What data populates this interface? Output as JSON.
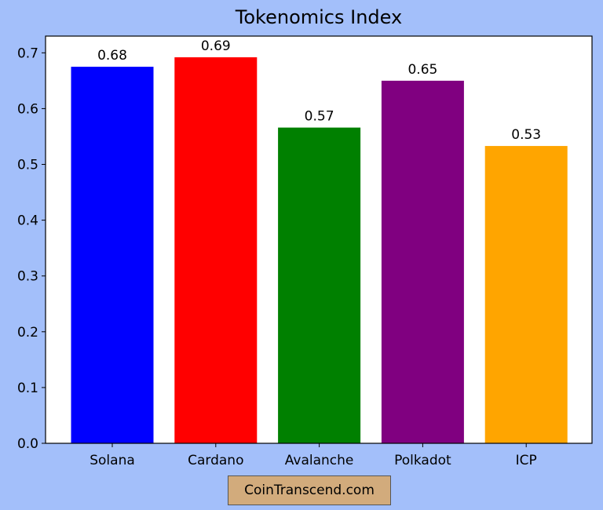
{
  "chart_data": {
    "type": "bar",
    "title": "Tokenomics Index",
    "xlabel": "",
    "ylabel": "",
    "categories": [
      "Solana",
      "Cardano",
      "Avalanche",
      "Polkadot",
      "ICP"
    ],
    "values": [
      0.675,
      0.692,
      0.566,
      0.65,
      0.533
    ],
    "value_labels": [
      "0.68",
      "0.69",
      "0.57",
      "0.65",
      "0.53"
    ],
    "colors": [
      "#0000ff",
      "#ff0000",
      "#008000",
      "#800080",
      "#ffa500"
    ],
    "ylim": [
      0,
      0.73
    ],
    "yticks": [
      0.0,
      0.1,
      0.2,
      0.3,
      0.4,
      0.5,
      0.6,
      0.7
    ],
    "ytick_labels": [
      "0.0",
      "0.1",
      "0.2",
      "0.3",
      "0.4",
      "0.5",
      "0.6",
      "0.7"
    ],
    "grid": false,
    "legend": "none"
  },
  "figure": {
    "background_color": "#a3bffa",
    "plot_background_color": "#ffffff",
    "source_label": "CoinTranscend.com",
    "source_badge_color": "#d2ab7c"
  }
}
